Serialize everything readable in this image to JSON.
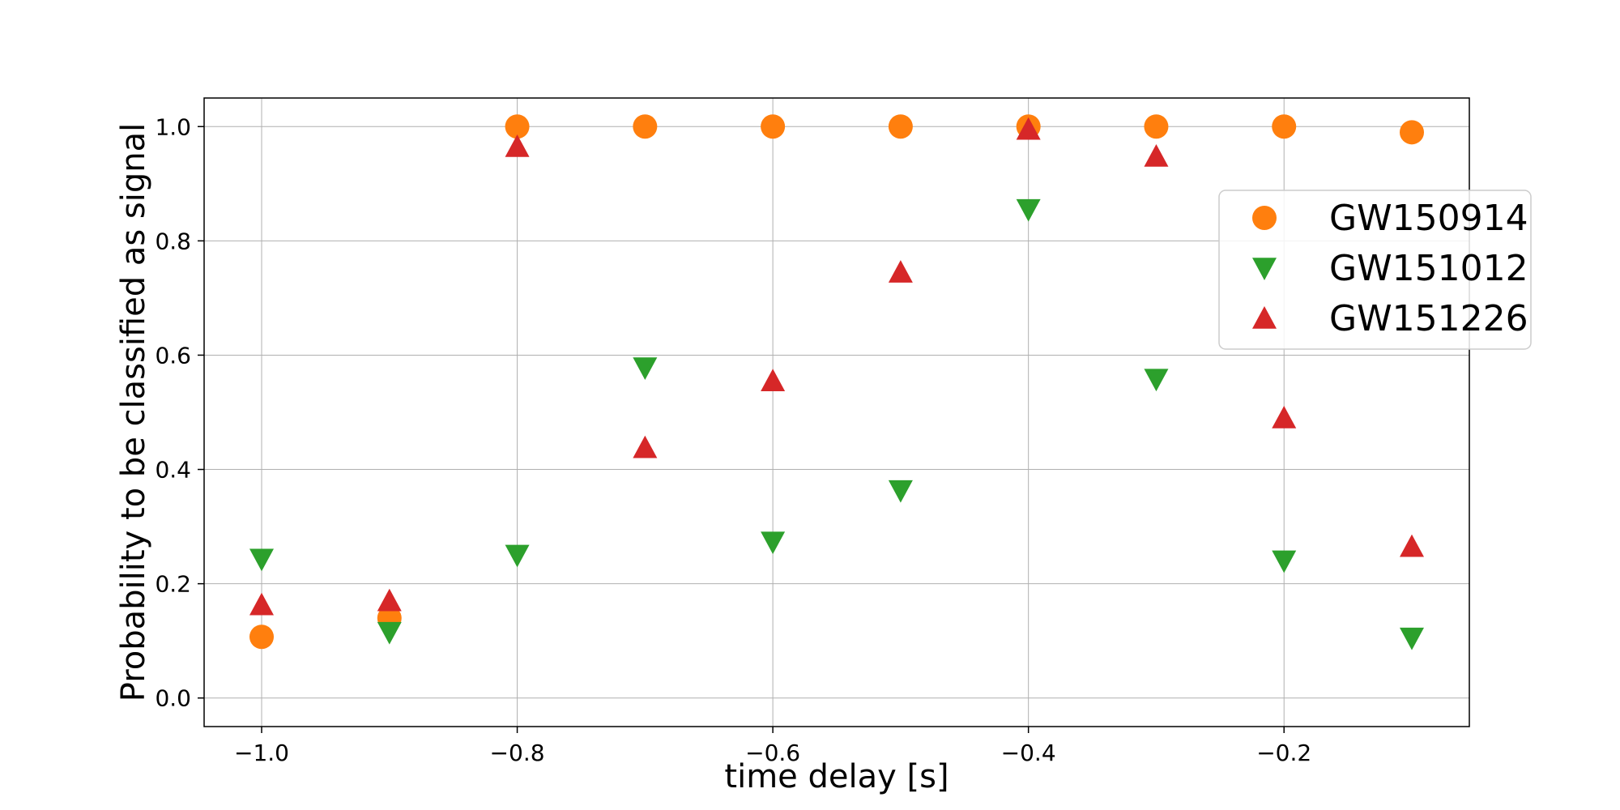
{
  "chart_data": {
    "type": "scatter",
    "title": "",
    "xlabel": "time delay [s]",
    "ylabel": "Probability to be classified as signal",
    "xlim": [
      -1.045,
      -0.055
    ],
    "ylim": [
      -0.05,
      1.05
    ],
    "xticks": [
      -1.0,
      -0.8,
      -0.6,
      -0.4,
      -0.2
    ],
    "xtick_labels": [
      "−1.0",
      "−0.8",
      "−0.6",
      "−0.4",
      "−0.2"
    ],
    "yticks": [
      0.0,
      0.2,
      0.4,
      0.6,
      0.8,
      1.0
    ],
    "ytick_labels": [
      "0.0",
      "0.2",
      "0.4",
      "0.6",
      "0.8",
      "1.0"
    ],
    "grid": true,
    "legend_position": "upper-right",
    "x": [
      -1.0,
      -0.9,
      -0.8,
      -0.7,
      -0.6,
      -0.5,
      -0.4,
      -0.3,
      -0.2,
      -0.1
    ],
    "series": [
      {
        "name": "GW150914",
        "marker": "circle",
        "color": "#ff7f0e",
        "values": [
          0.107,
          0.14,
          1.0,
          1.0,
          1.0,
          1.0,
          1.0,
          1.0,
          1.0,
          0.99
        ]
      },
      {
        "name": "GW151012",
        "marker": "triangle-down",
        "color": "#2ca02c",
        "values": [
          0.243,
          0.115,
          0.25,
          0.578,
          0.273,
          0.363,
          0.855,
          0.558,
          0.24,
          0.105
        ]
      },
      {
        "name": "GW151226",
        "marker": "triangle-up",
        "color": "#d62728",
        "values": [
          0.163,
          0.17,
          0.965,
          0.438,
          0.555,
          0.745,
          0.995,
          0.948,
          0.49,
          0.265
        ]
      }
    ]
  }
}
